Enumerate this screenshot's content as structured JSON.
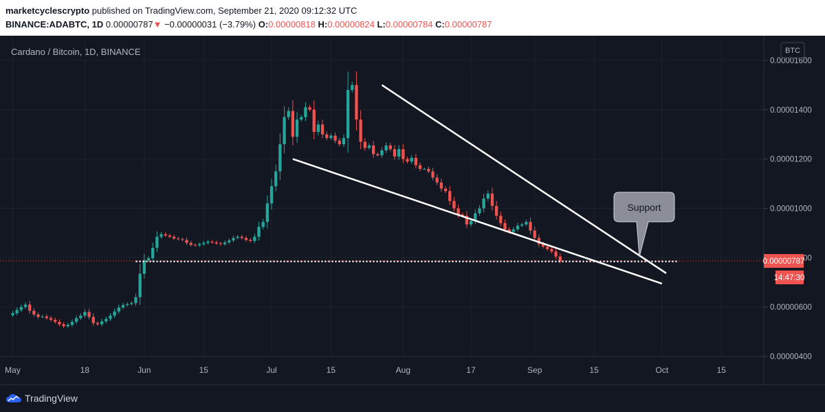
{
  "header": {
    "publisher": "marketcyclescrypto",
    "published_text": "published on TradingView.com, September 21, 2020 09:12:32 UTC",
    "symbol": "BINANCE:ADABTC, 1D",
    "last": "0.00000787",
    "change": "−0.00000031 (−3.79%)",
    "open_label": "O:",
    "open": "0.00000818",
    "high_label": "H:",
    "high": "0.00000824",
    "low_label": "L:",
    "low": "0.00000784",
    "close_label": "C:",
    "close": "0.00000787"
  },
  "chart_title": "Cardano / Bitcoin, 1D, BINANCE",
  "currency_button": "BTC",
  "price_tag": "0.00000787",
  "countdown_tag": "14:47:30",
  "annotation": "Support",
  "footer": {
    "brand": "TradingView"
  },
  "colors": {
    "up": "#26a69a",
    "down": "#ef5350",
    "background": "#131722",
    "grid": "#1e222d"
  },
  "chart_data": {
    "type": "candlestick",
    "title": "Cardano / Bitcoin, 1D, BINANCE",
    "y_ticks": [
      "0.00001600",
      "0.00001400",
      "0.00001200",
      "0.00001000",
      "0.00000800",
      "0.00000600",
      "0.00000400"
    ],
    "y_tick_values": [
      1600,
      1400,
      1200,
      1000,
      800,
      600,
      400
    ],
    "y_unit_note": "values x1e-8 BTC",
    "ylim": [
      400,
      1700
    ],
    "x_ticks": [
      "May",
      "18",
      "Jun",
      "15",
      "Jul",
      "15",
      "Aug",
      "17",
      "Sep",
      "15",
      "Oct",
      "15"
    ],
    "x_tick_days": [
      0,
      17,
      31,
      45,
      61,
      75,
      92,
      108,
      123,
      137,
      153,
      167
    ],
    "xlim": [
      -3,
      177
    ],
    "last_price": 787,
    "closes": [
      575,
      588,
      600,
      610,
      585,
      570,
      560,
      562,
      555,
      548,
      540,
      530,
      522,
      528,
      540,
      555,
      565,
      580,
      560,
      535,
      530,
      542,
      552,
      565,
      582,
      598,
      608,
      612,
      616,
      640,
      735,
      790,
      798,
      840,
      885,
      895,
      890,
      885,
      878,
      875,
      872,
      860,
      852,
      850,
      855,
      860,
      865,
      862,
      858,
      855,
      862,
      870,
      880,
      885,
      880,
      872,
      868,
      885,
      925,
      945,
      1020,
      1090,
      1150,
      1260,
      1370,
      1395,
      1290,
      1360,
      1370,
      1410,
      1400,
      1310,
      1340,
      1300,
      1285,
      1295,
      1275,
      1260,
      1285,
      1480,
      1500,
      1360,
      1270,
      1245,
      1255,
      1220,
      1215,
      1235,
      1255,
      1240,
      1210,
      1240,
      1200,
      1190,
      1205,
      1175,
      1160,
      1160,
      1150,
      1125,
      1105,
      1080,
      1070,
      1030,
      1000,
      975,
      970,
      935,
      950,
      980,
      1000,
      1040,
      1060,
      1010,
      970,
      940,
      915,
      905,
      915,
      930,
      935,
      945,
      910,
      880,
      855,
      845,
      835,
      825,
      805,
      787
    ],
    "support_level": 785,
    "trendlines": [
      {
        "name": "upper",
        "from": [
          87,
          1500
        ],
        "to": [
          154,
          737
        ]
      },
      {
        "name": "lower",
        "from": [
          66,
          1200
        ],
        "to": [
          153,
          695
        ]
      }
    ]
  }
}
